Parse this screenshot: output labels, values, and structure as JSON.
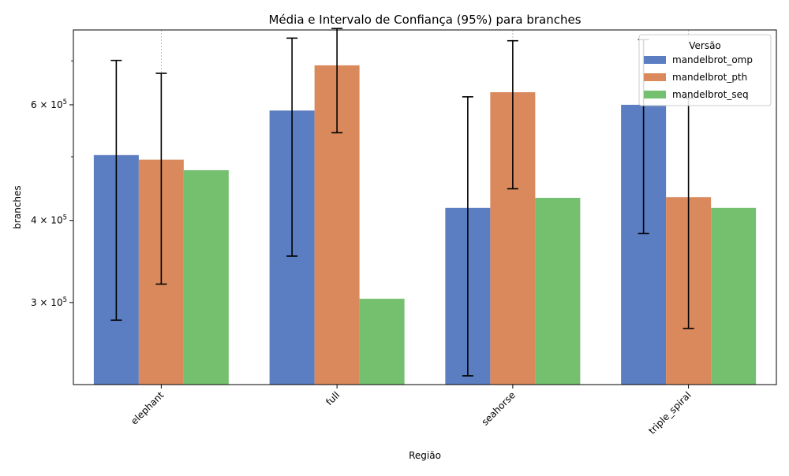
{
  "chart_data": {
    "type": "bar",
    "title": "Média e Intervalo de Confiança (95%) para branches",
    "xlabel": "Região",
    "ylabel": "branches",
    "yscale": "log",
    "ylim": [
      225000,
      780000
    ],
    "grid": "vertical dashed at categories",
    "legend": {
      "title": "Versão",
      "placement": "top-right"
    },
    "categories": [
      "elephant",
      "full",
      "seahorse",
      "triple_spiral"
    ],
    "y_ticks": [
      {
        "value": 300000,
        "mantissa": "3",
        "exp": "5"
      },
      {
        "value": 400000,
        "mantissa": "4",
        "exp": "5"
      },
      {
        "value": 600000,
        "mantissa": "6",
        "exp": "5"
      }
    ],
    "series": [
      {
        "name": "mandelbrot_omp",
        "color": "#5b7dc1",
        "values": [
          503000,
          588000,
          418000,
          600000
        ],
        "err_low": [
          282000,
          353000,
          232000,
          382000
        ],
        "err_high": [
          701000,
          758000,
          617000,
          754000
        ]
      },
      {
        "name": "mandelbrot_pth",
        "color": "#d9895c",
        "values": [
          495000,
          689000,
          627000,
          434000
        ],
        "err_low": [
          320000,
          544000,
          447000,
          274000
        ],
        "err_high": [
          670000,
          784000,
          751000,
          614000
        ]
      },
      {
        "name": "mandelbrot_seq",
        "color": "#75c06f",
        "values": [
          477000,
          304000,
          433000,
          418000
        ],
        "err_low": [],
        "err_high": []
      }
    ]
  }
}
